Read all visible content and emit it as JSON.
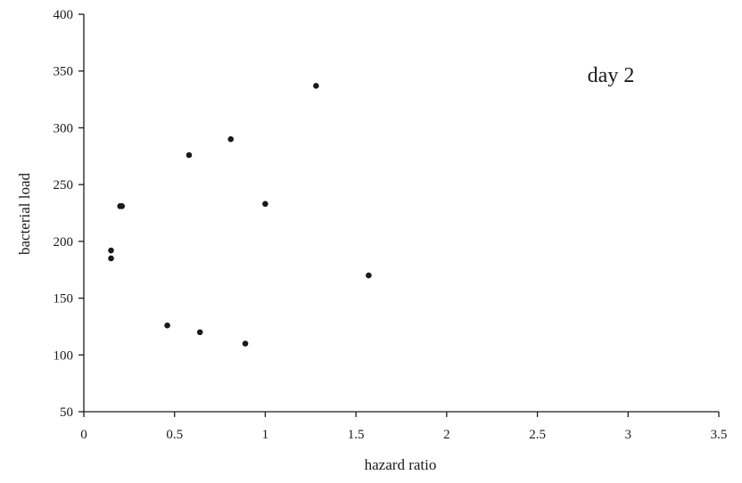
{
  "chart_data": {
    "type": "scatter",
    "title": "",
    "annotation": "day 2",
    "xlabel": "hazard ratio",
    "ylabel": "bacterial load",
    "xlim": [
      0,
      3.5
    ],
    "ylim": [
      50,
      400
    ],
    "x_ticks": [
      "0",
      "0.5",
      "1",
      "1.5",
      "2",
      "2.5",
      "3",
      "3.5"
    ],
    "y_ticks": [
      "50",
      "100",
      "150",
      "200",
      "250",
      "300",
      "350",
      "400"
    ],
    "grid": false,
    "legend": "none",
    "marker_color": "#1a1a1a",
    "points": [
      {
        "x": 0.15,
        "y": 192
      },
      {
        "x": 0.15,
        "y": 185
      },
      {
        "x": 0.2,
        "y": 231
      },
      {
        "x": 0.21,
        "y": 231
      },
      {
        "x": 0.46,
        "y": 126
      },
      {
        "x": 0.58,
        "y": 276
      },
      {
        "x": 0.64,
        "y": 120
      },
      {
        "x": 0.81,
        "y": 290
      },
      {
        "x": 0.89,
        "y": 110
      },
      {
        "x": 1.0,
        "y": 233
      },
      {
        "x": 1.28,
        "y": 337
      },
      {
        "x": 1.57,
        "y": 170
      }
    ]
  }
}
